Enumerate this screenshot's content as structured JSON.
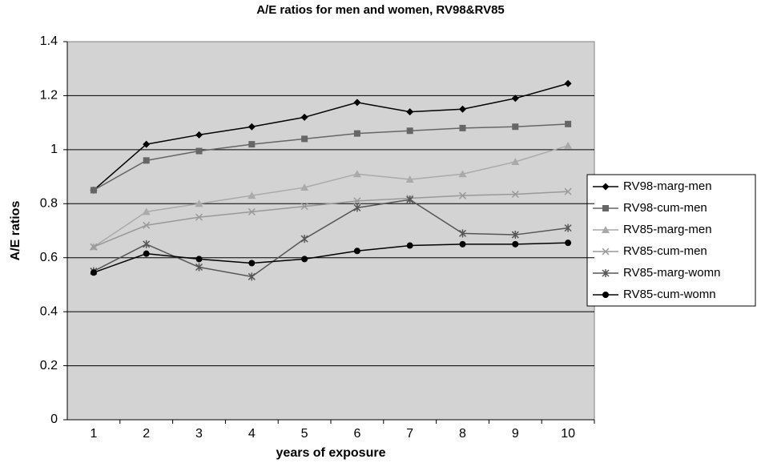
{
  "chart_data": {
    "type": "line",
    "title": "A/E ratios for men and women, RV98&RV85",
    "x_label": "years of exposure",
    "y_label": "A/E ratios",
    "categories": [
      "1",
      "2",
      "3",
      "4",
      "5",
      "6",
      "7",
      "8",
      "9",
      "10"
    ],
    "ylim": [
      0,
      1.4
    ],
    "yticks": [
      0,
      0.2,
      0.4,
      0.6,
      0.8,
      1,
      1.2,
      1.4
    ],
    "grid": true,
    "legend": "right",
    "series": [
      {
        "name": "RV98-marg-men",
        "color": "#000000",
        "marker": "diamond",
        "values": [
          0.85,
          1.02,
          1.055,
          1.085,
          1.12,
          1.175,
          1.14,
          1.15,
          1.19,
          1.245
        ]
      },
      {
        "name": "RV98-cum-men",
        "color": "#666666",
        "marker": "square",
        "values": [
          0.85,
          0.96,
          0.995,
          1.02,
          1.04,
          1.06,
          1.07,
          1.08,
          1.085,
          1.095
        ]
      },
      {
        "name": "RV85-marg-men",
        "color": "#aaaaaa",
        "marker": "triangle",
        "values": [
          0.64,
          0.77,
          0.8,
          0.83,
          0.86,
          0.91,
          0.89,
          0.91,
          0.955,
          1.015
        ]
      },
      {
        "name": "RV85-cum-men",
        "color": "#999999",
        "marker": "x",
        "values": [
          0.64,
          0.72,
          0.75,
          0.77,
          0.79,
          0.81,
          0.82,
          0.83,
          0.835,
          0.845
        ]
      },
      {
        "name": "RV85-marg-womn",
        "color": "#555555",
        "marker": "star",
        "values": [
          0.55,
          0.65,
          0.565,
          0.53,
          0.67,
          0.785,
          0.815,
          0.69,
          0.685,
          0.71
        ]
      },
      {
        "name": "RV85-cum-womn",
        "color": "#000000",
        "marker": "circle",
        "values": [
          0.545,
          0.615,
          0.595,
          0.58,
          0.595,
          0.625,
          0.645,
          0.65,
          0.65,
          0.655
        ]
      }
    ]
  }
}
